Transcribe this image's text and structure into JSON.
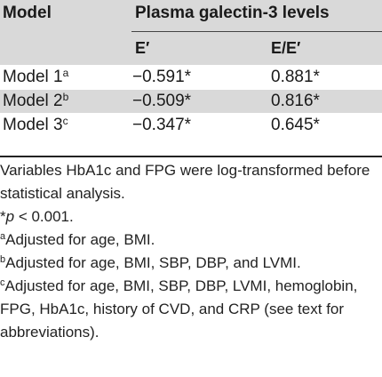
{
  "table": {
    "header": {
      "model_label": "Model",
      "group_label": "Plasma galectin-3 levels",
      "columns": [
        "E′",
        "E/E′"
      ]
    },
    "rows": [
      {
        "model": "Model 1",
        "marker": "a",
        "e_prime": "−0.591*",
        "e_over_e_prime": "0.881*"
      },
      {
        "model": "Model 2",
        "marker": "b",
        "e_prime": "−0.509*",
        "e_over_e_prime": "0.816*"
      },
      {
        "model": "Model 3",
        "marker": "c",
        "e_prime": "−0.347*",
        "e_over_e_prime": "0.645*"
      }
    ]
  },
  "notes": {
    "variables": "Variables HbA1c and FPG were log-transformed before statistical analysis.",
    "p_prefix": "*",
    "p_var": "p",
    "p_rest": " < 0.001.",
    "a_marker": "a",
    "a_text": "Adjusted for age, BMI.",
    "b_marker": "b",
    "b_text": "Adjusted for age, BMI, SBP, DBP, and LVMI.",
    "c_marker": "c",
    "c_text": "Adjusted for age, BMI, SBP, DBP, LVMI, hemoglobin, FPG, HbA1c, history of CVD, and CRP (see text for abbreviations)."
  }
}
